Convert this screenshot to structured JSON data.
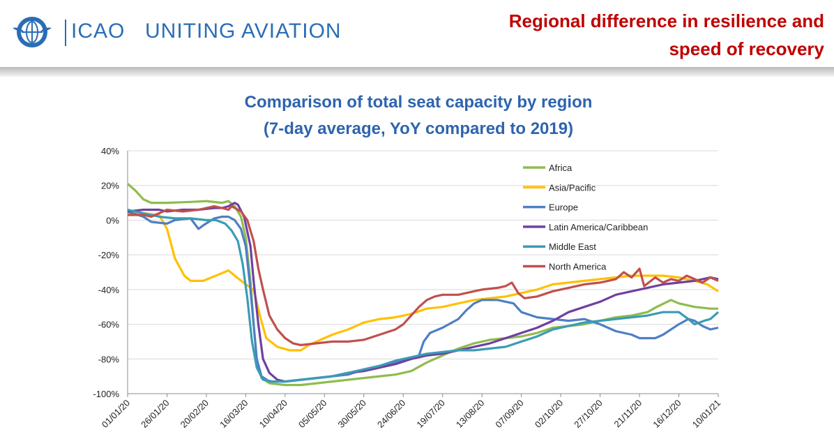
{
  "header": {
    "org": "ICAO",
    "motto": "UNITING AVIATION",
    "emblem_icon": "icao-emblem-icon",
    "slide_title_line1": "Regional difference in resilience and",
    "slide_title_line2": "speed of recovery"
  },
  "chart_data": {
    "type": "line",
    "title_line1": "Comparison of total seat capacity by region",
    "title_line2": "(7-day average, YoY compared to 2019)",
    "ylim": [
      -100,
      40
    ],
    "yticks": [
      "40%",
      "20%",
      "0%",
      "-20%",
      "-40%",
      "-60%",
      "-80%",
      "-100%"
    ],
    "ytick_values": [
      40,
      20,
      0,
      -20,
      -40,
      -60,
      -80,
      -100
    ],
    "xlim_days": [
      0,
      375
    ],
    "x_tick_labels": [
      "01/01/20",
      "26/01/20",
      "20/02/20",
      "16/03/20",
      "10/04/20",
      "05/05/20",
      "30/05/20",
      "24/06/20",
      "19/07/20",
      "13/08/20",
      "07/09/20",
      "02/10/20",
      "27/10/20",
      "21/11/20",
      "16/12/20",
      "10/01/21"
    ],
    "grid": true,
    "legend_position": "top-right",
    "series": [
      {
        "name": "Africa",
        "color": "#8fbc4e",
        "points": [
          [
            0,
            21
          ],
          [
            5,
            17
          ],
          [
            10,
            12
          ],
          [
            15,
            10
          ],
          [
            25,
            10
          ],
          [
            40,
            10.5
          ],
          [
            50,
            11
          ],
          [
            60,
            10
          ],
          [
            64,
            11
          ],
          [
            68,
            8
          ],
          [
            72,
            2
          ],
          [
            75,
            -10
          ],
          [
            78,
            -35
          ],
          [
            80,
            -60
          ],
          [
            82,
            -80
          ],
          [
            85,
            -91
          ],
          [
            90,
            -94
          ],
          [
            100,
            -95
          ],
          [
            110,
            -95
          ],
          [
            120,
            -94
          ],
          [
            130,
            -93
          ],
          [
            140,
            -92
          ],
          [
            150,
            -91
          ],
          [
            160,
            -90
          ],
          [
            170,
            -89
          ],
          [
            180,
            -87
          ],
          [
            190,
            -82
          ],
          [
            200,
            -78
          ],
          [
            210,
            -74
          ],
          [
            220,
            -71
          ],
          [
            230,
            -69
          ],
          [
            240,
            -68
          ],
          [
            250,
            -67
          ],
          [
            260,
            -65
          ],
          [
            270,
            -62
          ],
          [
            280,
            -61
          ],
          [
            290,
            -60
          ],
          [
            300,
            -58
          ],
          [
            310,
            -56
          ],
          [
            320,
            -55
          ],
          [
            330,
            -53
          ],
          [
            336,
            -50
          ],
          [
            345,
            -46
          ],
          [
            350,
            -48
          ],
          [
            360,
            -50
          ],
          [
            370,
            -51
          ],
          [
            375,
            -51
          ]
        ]
      },
      {
        "name": "Asia/Pacific",
        "color": "#ffc000",
        "points": [
          [
            0,
            4
          ],
          [
            10,
            4
          ],
          [
            20,
            3
          ],
          [
            25,
            -5
          ],
          [
            30,
            -22
          ],
          [
            36,
            -32
          ],
          [
            40,
            -35
          ],
          [
            48,
            -35
          ],
          [
            56,
            -32
          ],
          [
            64,
            -29
          ],
          [
            68,
            -32
          ],
          [
            75,
            -37
          ],
          [
            80,
            -40
          ],
          [
            84,
            -55
          ],
          [
            88,
            -68
          ],
          [
            95,
            -73
          ],
          [
            103,
            -75
          ],
          [
            110,
            -75
          ],
          [
            115,
            -72
          ],
          [
            120,
            -70
          ],
          [
            130,
            -66
          ],
          [
            140,
            -63
          ],
          [
            150,
            -59
          ],
          [
            160,
            -57
          ],
          [
            170,
            -56
          ],
          [
            180,
            -54
          ],
          [
            190,
            -51
          ],
          [
            200,
            -50
          ],
          [
            210,
            -48
          ],
          [
            220,
            -46
          ],
          [
            230,
            -45
          ],
          [
            240,
            -44
          ],
          [
            250,
            -42
          ],
          [
            260,
            -40
          ],
          [
            270,
            -37
          ],
          [
            280,
            -36
          ],
          [
            290,
            -35
          ],
          [
            300,
            -34
          ],
          [
            310,
            -33
          ],
          [
            320,
            -32
          ],
          [
            330,
            -32
          ],
          [
            340,
            -32
          ],
          [
            350,
            -33
          ],
          [
            360,
            -35
          ],
          [
            368,
            -37
          ],
          [
            375,
            -41
          ]
        ]
      },
      {
        "name": "Europe",
        "color": "#4e7fc4",
        "points": [
          [
            0,
            5
          ],
          [
            10,
            2
          ],
          [
            15,
            -1
          ],
          [
            25,
            -2
          ],
          [
            30,
            0
          ],
          [
            40,
            1
          ],
          [
            45,
            -5
          ],
          [
            48,
            -3
          ],
          [
            55,
            1
          ],
          [
            60,
            2
          ],
          [
            64,
            2
          ],
          [
            68,
            0
          ],
          [
            72,
            -5
          ],
          [
            75,
            -15
          ],
          [
            78,
            -40
          ],
          [
            80,
            -60
          ],
          [
            82,
            -80
          ],
          [
            85,
            -90
          ],
          [
            90,
            -93
          ],
          [
            100,
            -93
          ],
          [
            110,
            -92
          ],
          [
            120,
            -91
          ],
          [
            130,
            -90
          ],
          [
            140,
            -89
          ],
          [
            150,
            -86
          ],
          [
            160,
            -84
          ],
          [
            170,
            -82
          ],
          [
            180,
            -80
          ],
          [
            185,
            -78
          ],
          [
            188,
            -70
          ],
          [
            192,
            -65
          ],
          [
            200,
            -62
          ],
          [
            210,
            -57
          ],
          [
            215,
            -52
          ],
          [
            220,
            -48
          ],
          [
            225,
            -46
          ],
          [
            235,
            -46
          ],
          [
            240,
            -47
          ],
          [
            245,
            -48
          ],
          [
            250,
            -53
          ],
          [
            260,
            -56
          ],
          [
            270,
            -57
          ],
          [
            280,
            -58
          ],
          [
            290,
            -57
          ],
          [
            300,
            -60
          ],
          [
            310,
            -64
          ],
          [
            320,
            -66
          ],
          [
            325,
            -68
          ],
          [
            335,
            -68
          ],
          [
            340,
            -66
          ],
          [
            350,
            -60
          ],
          [
            356,
            -57
          ],
          [
            360,
            -58
          ],
          [
            365,
            -61
          ],
          [
            370,
            -63
          ],
          [
            375,
            -62
          ]
        ]
      },
      {
        "name": "Latin America/Caribbean",
        "color": "#7040a0",
        "points": [
          [
            0,
            5
          ],
          [
            10,
            6
          ],
          [
            20,
            6
          ],
          [
            25,
            5
          ],
          [
            35,
            6
          ],
          [
            45,
            6
          ],
          [
            55,
            7
          ],
          [
            60,
            7
          ],
          [
            64,
            8
          ],
          [
            68,
            10
          ],
          [
            70,
            9
          ],
          [
            74,
            2
          ],
          [
            78,
            -15
          ],
          [
            80,
            -35
          ],
          [
            83,
            -60
          ],
          [
            86,
            -80
          ],
          [
            90,
            -88
          ],
          [
            95,
            -92
          ],
          [
            100,
            -93
          ],
          [
            110,
            -92
          ],
          [
            120,
            -91
          ],
          [
            130,
            -90
          ],
          [
            140,
            -88
          ],
          [
            150,
            -87
          ],
          [
            160,
            -85
          ],
          [
            170,
            -83
          ],
          [
            180,
            -80
          ],
          [
            190,
            -78
          ],
          [
            200,
            -77
          ],
          [
            210,
            -75
          ],
          [
            220,
            -73
          ],
          [
            230,
            -71
          ],
          [
            240,
            -68
          ],
          [
            250,
            -65
          ],
          [
            260,
            -62
          ],
          [
            270,
            -58
          ],
          [
            280,
            -53
          ],
          [
            290,
            -50
          ],
          [
            300,
            -47
          ],
          [
            310,
            -43
          ],
          [
            320,
            -41
          ],
          [
            330,
            -39
          ],
          [
            340,
            -37
          ],
          [
            350,
            -36
          ],
          [
            360,
            -35
          ],
          [
            370,
            -33
          ],
          [
            375,
            -34
          ]
        ]
      },
      {
        "name": "Middle East",
        "color": "#3a9cb5",
        "points": [
          [
            0,
            6
          ],
          [
            10,
            4
          ],
          [
            20,
            2
          ],
          [
            30,
            1
          ],
          [
            40,
            1
          ],
          [
            50,
            0
          ],
          [
            56,
            0
          ],
          [
            62,
            -2
          ],
          [
            66,
            -6
          ],
          [
            70,
            -12
          ],
          [
            73,
            -25
          ],
          [
            76,
            -45
          ],
          [
            79,
            -70
          ],
          [
            82,
            -85
          ],
          [
            86,
            -92
          ],
          [
            92,
            -93
          ],
          [
            100,
            -93
          ],
          [
            110,
            -92
          ],
          [
            120,
            -91
          ],
          [
            130,
            -90
          ],
          [
            140,
            -88
          ],
          [
            150,
            -86
          ],
          [
            160,
            -84
          ],
          [
            170,
            -81
          ],
          [
            180,
            -79
          ],
          [
            190,
            -77
          ],
          [
            200,
            -76
          ],
          [
            210,
            -75
          ],
          [
            220,
            -75
          ],
          [
            230,
            -74
          ],
          [
            240,
            -73
          ],
          [
            250,
            -70
          ],
          [
            260,
            -67
          ],
          [
            270,
            -63
          ],
          [
            280,
            -61
          ],
          [
            290,
            -59
          ],
          [
            300,
            -58
          ],
          [
            310,
            -57
          ],
          [
            320,
            -56
          ],
          [
            330,
            -55
          ],
          [
            340,
            -53
          ],
          [
            350,
            -53
          ],
          [
            356,
            -57
          ],
          [
            360,
            -60
          ],
          [
            366,
            -58
          ],
          [
            370,
            -57
          ],
          [
            375,
            -53
          ]
        ]
      },
      {
        "name": "North America",
        "color": "#c0504d",
        "points": [
          [
            0,
            3
          ],
          [
            10,
            3
          ],
          [
            15,
            2
          ],
          [
            25,
            6
          ],
          [
            35,
            5
          ],
          [
            45,
            6
          ],
          [
            50,
            7
          ],
          [
            55,
            8
          ],
          [
            60,
            7
          ],
          [
            64,
            6
          ],
          [
            66,
            8
          ],
          [
            72,
            5
          ],
          [
            76,
            0
          ],
          [
            80,
            -12
          ],
          [
            83,
            -28
          ],
          [
            86,
            -40
          ],
          [
            90,
            -55
          ],
          [
            95,
            -63
          ],
          [
            100,
            -68
          ],
          [
            105,
            -71
          ],
          [
            110,
            -72
          ],
          [
            120,
            -71
          ],
          [
            130,
            -70
          ],
          [
            140,
            -70
          ],
          [
            150,
            -69
          ],
          [
            160,
            -66
          ],
          [
            170,
            -63
          ],
          [
            175,
            -60
          ],
          [
            180,
            -55
          ],
          [
            185,
            -50
          ],
          [
            190,
            -46
          ],
          [
            195,
            -44
          ],
          [
            200,
            -43
          ],
          [
            210,
            -43
          ],
          [
            220,
            -41
          ],
          [
            225,
            -40
          ],
          [
            235,
            -39
          ],
          [
            240,
            -38
          ],
          [
            244,
            -36
          ],
          [
            248,
            -42
          ],
          [
            252,
            -45
          ],
          [
            260,
            -44
          ],
          [
            270,
            -41
          ],
          [
            280,
            -39
          ],
          [
            290,
            -37
          ],
          [
            300,
            -36
          ],
          [
            310,
            -34
          ],
          [
            315,
            -30
          ],
          [
            320,
            -33
          ],
          [
            325,
            -28
          ],
          [
            328,
            -38
          ],
          [
            335,
            -33
          ],
          [
            340,
            -36
          ],
          [
            345,
            -34
          ],
          [
            350,
            -35
          ],
          [
            355,
            -32
          ],
          [
            360,
            -34
          ],
          [
            365,
            -36
          ],
          [
            370,
            -33
          ],
          [
            375,
            -35
          ]
        ]
      }
    ]
  }
}
